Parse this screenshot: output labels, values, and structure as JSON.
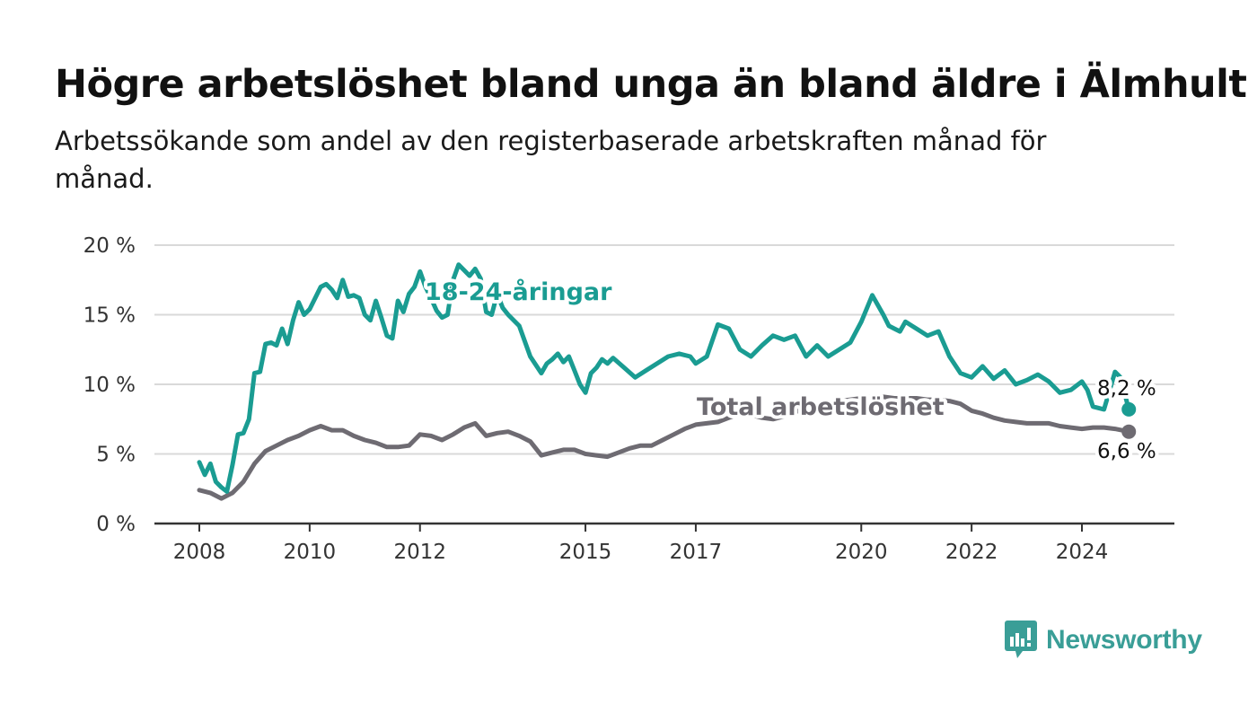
{
  "chart_data": {
    "type": "line",
    "title": "Högre arbetslöshet bland unga än bland äldre i Älmhult",
    "subtitle": "Arbetssökande som andel av den registerbaserade arbetskraften månad för månad.",
    "ylim": [
      0,
      20
    ],
    "yticks": [
      "0 %",
      "5 %",
      "10 %",
      "15 %",
      "20 %"
    ],
    "ytick_values": [
      0,
      5,
      10,
      15,
      20
    ],
    "xticks": [
      "2008",
      "2010",
      "2012",
      "2015",
      "2017",
      "2020",
      "2022",
      "2024"
    ],
    "xtick_values": [
      2008,
      2010,
      2012,
      2015,
      2017,
      2020,
      2022,
      2024
    ],
    "grid": true,
    "series": [
      {
        "name": "18-24-åringar",
        "color": "#1a9c92",
        "end_label": "8,2 %",
        "x": [
          2008.0,
          2008.1,
          2008.2,
          2008.3,
          2008.4,
          2008.5,
          2008.6,
          2008.7,
          2008.8,
          2008.9,
          2009.0,
          2009.1,
          2009.2,
          2009.3,
          2009.4,
          2009.5,
          2009.6,
          2009.7,
          2009.8,
          2009.9,
          2010.0,
          2010.2,
          2010.3,
          2010.4,
          2010.5,
          2010.6,
          2010.7,
          2010.8,
          2010.9,
          2011.0,
          2011.1,
          2011.2,
          2011.3,
          2011.4,
          2011.5,
          2011.6,
          2011.7,
          2011.8,
          2011.9,
          2012.0,
          2012.1,
          2012.2,
          2012.3,
          2012.4,
          2012.5,
          2012.6,
          2012.7,
          2012.8,
          2012.9,
          2013.0,
          2013.1,
          2013.2,
          2013.3,
          2013.4,
          2013.5,
          2013.6,
          2013.8,
          2014.0,
          2014.2,
          2014.3,
          2014.4,
          2014.5,
          2014.6,
          2014.7,
          2014.8,
          2014.9,
          2015.0,
          2015.1,
          2015.2,
          2015.3,
          2015.4,
          2015.5,
          2015.7,
          2015.9,
          2016.1,
          2016.3,
          2016.5,
          2016.7,
          2016.9,
          2017.0,
          2017.2,
          2017.4,
          2017.6,
          2017.8,
          2018.0,
          2018.2,
          2018.4,
          2018.6,
          2018.8,
          2019.0,
          2019.2,
          2019.4,
          2019.6,
          2019.8,
          2020.0,
          2020.2,
          2020.4,
          2020.5,
          2020.6,
          2020.7,
          2020.8,
          2021.0,
          2021.2,
          2021.4,
          2021.6,
          2021.8,
          2022.0,
          2022.2,
          2022.4,
          2022.6,
          2022.8,
          2023.0,
          2023.2,
          2023.4,
          2023.6,
          2023.8,
          2024.0,
          2024.1,
          2024.2,
          2024.4,
          2024.6,
          2024.7,
          2024.85
        ],
        "y": [
          4.4,
          3.5,
          4.3,
          3.0,
          2.6,
          2.3,
          4.2,
          6.4,
          6.5,
          7.5,
          10.8,
          10.9,
          12.9,
          13.0,
          12.8,
          14.0,
          12.9,
          14.6,
          15.9,
          15.0,
          15.4,
          17.0,
          17.2,
          16.8,
          16.2,
          17.5,
          16.3,
          16.4,
          16.2,
          15.0,
          14.6,
          16.0,
          14.8,
          13.5,
          13.3,
          16.0,
          15.2,
          16.5,
          17.0,
          18.1,
          17.0,
          16.2,
          15.3,
          14.8,
          15.0,
          17.5,
          18.6,
          18.2,
          17.8,
          18.3,
          17.6,
          15.2,
          15.0,
          16.5,
          15.5,
          15.0,
          14.2,
          12.0,
          10.8,
          11.5,
          11.8,
          12.2,
          11.6,
          12.0,
          11.0,
          10.0,
          9.4,
          10.8,
          11.2,
          11.8,
          11.5,
          11.9,
          11.2,
          10.5,
          11.0,
          11.5,
          12.0,
          12.2,
          12.0,
          11.5,
          12.0,
          14.3,
          14.0,
          12.5,
          12.0,
          12.8,
          13.5,
          13.2,
          13.5,
          12.0,
          12.8,
          12.0,
          12.5,
          13.0,
          14.5,
          16.4,
          15.0,
          14.2,
          14.0,
          13.8,
          14.5,
          14.0,
          13.5,
          13.8,
          12.0,
          10.8,
          10.5,
          11.3,
          10.4,
          11.0,
          10.0,
          10.3,
          10.7,
          10.2,
          9.4,
          9.6,
          10.2,
          9.6,
          8.4,
          8.2,
          10.9,
          10.5,
          8.2
        ]
      },
      {
        "name": "Total arbetslöshet",
        "color": "#6e6b72",
        "end_label": "6,6 %",
        "x": [
          2008.0,
          2008.2,
          2008.4,
          2008.6,
          2008.8,
          2009.0,
          2009.2,
          2009.4,
          2009.6,
          2009.8,
          2010.0,
          2010.2,
          2010.4,
          2010.6,
          2010.8,
          2011.0,
          2011.2,
          2011.4,
          2011.6,
          2011.8,
          2012.0,
          2012.2,
          2012.4,
          2012.6,
          2012.8,
          2013.0,
          2013.2,
          2013.4,
          2013.6,
          2013.8,
          2014.0,
          2014.2,
          2014.4,
          2014.6,
          2014.8,
          2015.0,
          2015.2,
          2015.4,
          2015.6,
          2015.8,
          2016.0,
          2016.2,
          2016.4,
          2016.6,
          2016.8,
          2017.0,
          2017.2,
          2017.4,
          2017.6,
          2017.8,
          2018.0,
          2018.2,
          2018.4,
          2018.6,
          2018.8,
          2019.0,
          2019.2,
          2019.4,
          2019.6,
          2019.8,
          2020.0,
          2020.2,
          2020.4,
          2020.6,
          2020.8,
          2021.0,
          2021.2,
          2021.4,
          2021.6,
          2021.8,
          2022.0,
          2022.2,
          2022.4,
          2022.6,
          2022.8,
          2023.0,
          2023.2,
          2023.4,
          2023.6,
          2023.8,
          2024.0,
          2024.2,
          2024.4,
          2024.6,
          2024.85
        ],
        "y": [
          2.4,
          2.2,
          1.8,
          2.2,
          3.0,
          4.3,
          5.2,
          5.6,
          6.0,
          6.3,
          6.7,
          7.0,
          6.7,
          6.7,
          6.3,
          6.0,
          5.8,
          5.5,
          5.5,
          5.6,
          6.4,
          6.3,
          6.0,
          6.4,
          6.9,
          7.2,
          6.3,
          6.5,
          6.6,
          6.3,
          5.9,
          4.9,
          5.1,
          5.3,
          5.3,
          5.0,
          4.9,
          4.8,
          5.1,
          5.4,
          5.6,
          5.6,
          6.0,
          6.4,
          6.8,
          7.1,
          7.2,
          7.3,
          7.6,
          7.9,
          7.8,
          7.6,
          7.5,
          7.7,
          8.0,
          8.3,
          8.6,
          8.7,
          8.8,
          8.9,
          9.0,
          9.1,
          9.1,
          9.0,
          9.0,
          9.0,
          8.9,
          8.9,
          8.8,
          8.6,
          8.1,
          7.9,
          7.6,
          7.4,
          7.3,
          7.2,
          7.2,
          7.2,
          7.0,
          6.9,
          6.8,
          6.9,
          6.9,
          6.8,
          6.6
        ]
      }
    ]
  },
  "inline_labels": {
    "young": "18-24-åringar",
    "total": "Total arbetslöshet"
  },
  "logo": {
    "text": "Newsworthy"
  }
}
